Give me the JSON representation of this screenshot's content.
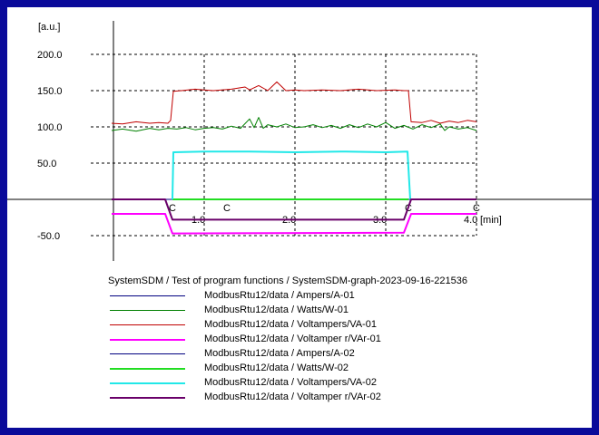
{
  "chart_data": {
    "type": "line",
    "ylabel": "[a.u.]",
    "xunit": "[min]",
    "xlim": [
      -0.25,
      4.0
    ],
    "ylim": [
      -50,
      200
    ],
    "grid": true,
    "xticks": [
      "1.0",
      "2.0",
      "3.0",
      "4.0"
    ],
    "yticks": [
      "200.0",
      "150.0",
      "100.0",
      "50.0",
      "-50.0"
    ],
    "markers": [
      {
        "label": "C",
        "x": 0.65
      },
      {
        "label": "C",
        "x": 1.25
      },
      {
        "label": "C",
        "x": 3.25
      },
      {
        "label": "C",
        "x": 4.0
      }
    ],
    "series": [
      {
        "name": "ModbusRtu12/data / Ampers/A-01",
        "color": "#000080",
        "width": 1,
        "x": [
          -0.02,
          4.0
        ],
        "y": [
          0,
          0
        ]
      },
      {
        "name": "ModbusRtu12/data / Watts/W-01",
        "color": "#008000",
        "width": 1,
        "x": [
          -0.02,
          0.1,
          0.25,
          0.4,
          0.5,
          0.6,
          0.7,
          0.8,
          0.9,
          1.0,
          1.1,
          1.2,
          1.3,
          1.4,
          1.5,
          1.55,
          1.6,
          1.65,
          1.7,
          1.8,
          1.9,
          2.0,
          2.1,
          2.2,
          2.3,
          2.4,
          2.5,
          2.6,
          2.7,
          2.8,
          2.9,
          3.0,
          3.1,
          3.2,
          3.3,
          3.4,
          3.5,
          3.6,
          3.65,
          3.7,
          3.8,
          3.9,
          4.0
        ],
        "y": [
          95,
          97,
          94,
          98,
          96,
          98,
          97,
          99,
          96,
          98,
          99,
          97,
          101,
          98,
          111,
          99,
          113,
          98,
          103,
          100,
          104,
          99,
          100,
          103,
          99,
          102,
          98,
          103,
          99,
          104,
          100,
          106,
          98,
          102,
          97,
          103,
          99,
          104,
          95,
          100,
          97,
          99,
          95
        ]
      },
      {
        "name": "ModbusRtu12/data / Voltampers/VA-01",
        "color": "#c00000",
        "width": 1,
        "x": [
          -0.02,
          0.1,
          0.25,
          0.4,
          0.5,
          0.6,
          0.63,
          0.66,
          0.75,
          0.9,
          1.0,
          1.1,
          1.3,
          1.45,
          1.5,
          1.6,
          1.7,
          1.8,
          1.9,
          2.0,
          2.1,
          2.3,
          2.5,
          2.7,
          2.9,
          3.1,
          3.2,
          3.25,
          3.28,
          3.4,
          3.5,
          3.6,
          3.7,
          3.8,
          3.9,
          4.0
        ],
        "y": [
          105,
          104,
          107,
          105,
          106,
          105,
          109,
          149,
          150,
          152,
          151,
          150,
          152,
          155,
          151,
          157,
          150,
          162,
          150,
          151,
          150,
          151,
          150,
          152,
          150,
          151,
          150,
          150,
          107,
          106,
          109,
          105,
          108,
          106,
          109,
          107
        ]
      },
      {
        "name": "ModbusRtu12/data / Voltamper r/VAr-01",
        "color": "#ff00ff",
        "width": 2,
        "x": [
          -0.02,
          0.57,
          0.65,
          3.2,
          3.28,
          4.0
        ],
        "y": [
          -20,
          -20,
          -47,
          -46,
          -20,
          -20
        ]
      },
      {
        "name": "ModbusRtu12/data / Ampers/A-02",
        "color": "#000080",
        "width": 1,
        "x": [
          -0.02,
          4.0
        ],
        "y": [
          0,
          0
        ]
      },
      {
        "name": "ModbusRtu12/data / Watts/W-02",
        "color": "#22dd22",
        "width": 2,
        "x": [
          0.65,
          3.25
        ],
        "y": [
          0,
          0
        ]
      },
      {
        "name": "ModbusRtu12/data / Voltampers/VA-02",
        "color": "#22e8e8",
        "width": 2,
        "x": [
          0.65,
          0.66,
          1.0,
          1.5,
          2.0,
          2.5,
          3.0,
          3.24,
          3.27
        ],
        "y": [
          0,
          65,
          66,
          66,
          65,
          66,
          65,
          66,
          0
        ]
      },
      {
        "name": "ModbusRtu12/data / Voltamper r/VAr-02",
        "color": "#6a006a",
        "width": 2,
        "x": [
          -0.02,
          0.57,
          0.65,
          3.2,
          3.28,
          4.0
        ],
        "y": [
          0,
          0,
          -28,
          -28,
          0,
          0
        ]
      }
    ]
  },
  "legend": {
    "title": "SystemSDM / Test of program functions / SystemSDM-graph-2023-09-16-221536"
  }
}
